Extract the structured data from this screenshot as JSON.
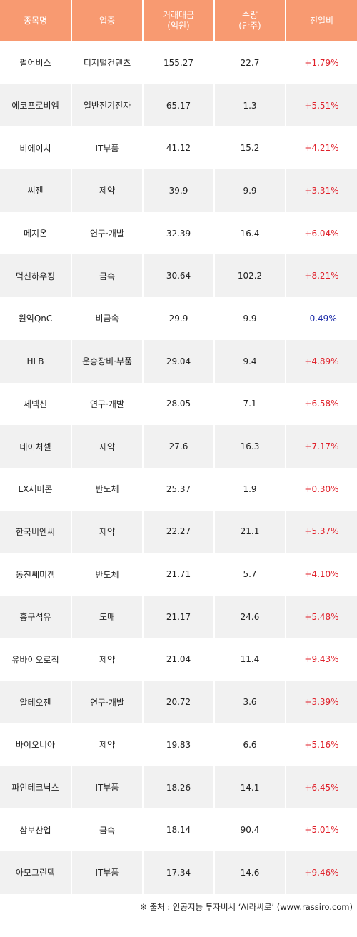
{
  "table": {
    "headers": [
      [
        "종목명"
      ],
      [
        "업종"
      ],
      [
        "거래대금",
        "(억원)"
      ],
      [
        "수량",
        "(만주)"
      ],
      [
        "전일비"
      ]
    ],
    "rows": [
      {
        "name": "펄어비스",
        "sector": "디지털컨텐츠",
        "amount": "155.27",
        "volume": "22.7",
        "change": "+1.79%",
        "dir": "up"
      },
      {
        "name": "에코프로비엠",
        "sector": "일반전기전자",
        "amount": "65.17",
        "volume": "1.3",
        "change": "+5.51%",
        "dir": "up"
      },
      {
        "name": "비에이치",
        "sector": "IT부품",
        "amount": "41.12",
        "volume": "15.2",
        "change": "+4.21%",
        "dir": "up"
      },
      {
        "name": "씨젠",
        "sector": "제약",
        "amount": "39.9",
        "volume": "9.9",
        "change": "+3.31%",
        "dir": "up"
      },
      {
        "name": "메지온",
        "sector": "연구·개발",
        "amount": "32.39",
        "volume": "16.4",
        "change": "+6.04%",
        "dir": "up"
      },
      {
        "name": "덕신하우징",
        "sector": "금속",
        "amount": "30.64",
        "volume": "102.2",
        "change": "+8.21%",
        "dir": "up"
      },
      {
        "name": "원익QnC",
        "sector": "비금속",
        "amount": "29.9",
        "volume": "9.9",
        "change": "-0.49%",
        "dir": "down"
      },
      {
        "name": "HLB",
        "sector": "운송장비·부품",
        "amount": "29.04",
        "volume": "9.4",
        "change": "+4.89%",
        "dir": "up"
      },
      {
        "name": "제넥신",
        "sector": "연구·개발",
        "amount": "28.05",
        "volume": "7.1",
        "change": "+6.58%",
        "dir": "up"
      },
      {
        "name": "네이처셀",
        "sector": "제약",
        "amount": "27.6",
        "volume": "16.3",
        "change": "+7.17%",
        "dir": "up"
      },
      {
        "name": "LX세미콘",
        "sector": "반도체",
        "amount": "25.37",
        "volume": "1.9",
        "change": "+0.30%",
        "dir": "up"
      },
      {
        "name": "한국비엔씨",
        "sector": "제약",
        "amount": "22.27",
        "volume": "21.1",
        "change": "+5.37%",
        "dir": "up"
      },
      {
        "name": "동진쎄미켐",
        "sector": "반도체",
        "amount": "21.71",
        "volume": "5.7",
        "change": "+4.10%",
        "dir": "up"
      },
      {
        "name": "흥구석유",
        "sector": "도매",
        "amount": "21.17",
        "volume": "24.6",
        "change": "+5.48%",
        "dir": "up"
      },
      {
        "name": "유바이오로직",
        "sector": "제약",
        "amount": "21.04",
        "volume": "11.4",
        "change": "+9.43%",
        "dir": "up"
      },
      {
        "name": "알테오젠",
        "sector": "연구·개발",
        "amount": "20.72",
        "volume": "3.6",
        "change": "+3.39%",
        "dir": "up"
      },
      {
        "name": "바이오니아",
        "sector": "제약",
        "amount": "19.83",
        "volume": "6.6",
        "change": "+5.16%",
        "dir": "up"
      },
      {
        "name": "파인테크닉스",
        "sector": "IT부품",
        "amount": "18.26",
        "volume": "14.1",
        "change": "+6.45%",
        "dir": "up"
      },
      {
        "name": "삼보산업",
        "sector": "금속",
        "amount": "18.14",
        "volume": "90.4",
        "change": "+5.01%",
        "dir": "up"
      },
      {
        "name": "아모그린텍",
        "sector": "IT부품",
        "amount": "17.34",
        "volume": "14.6",
        "change": "+9.46%",
        "dir": "up"
      }
    ]
  },
  "source": "※ 출처 : 인공지능 투자비서 ‘AI라씨로’ (www.rassiro.com)",
  "colors": {
    "header_bg": "#f89a71",
    "up": "#e0202a",
    "down": "#1a2aa8",
    "stripe": "#f1f1f1"
  }
}
